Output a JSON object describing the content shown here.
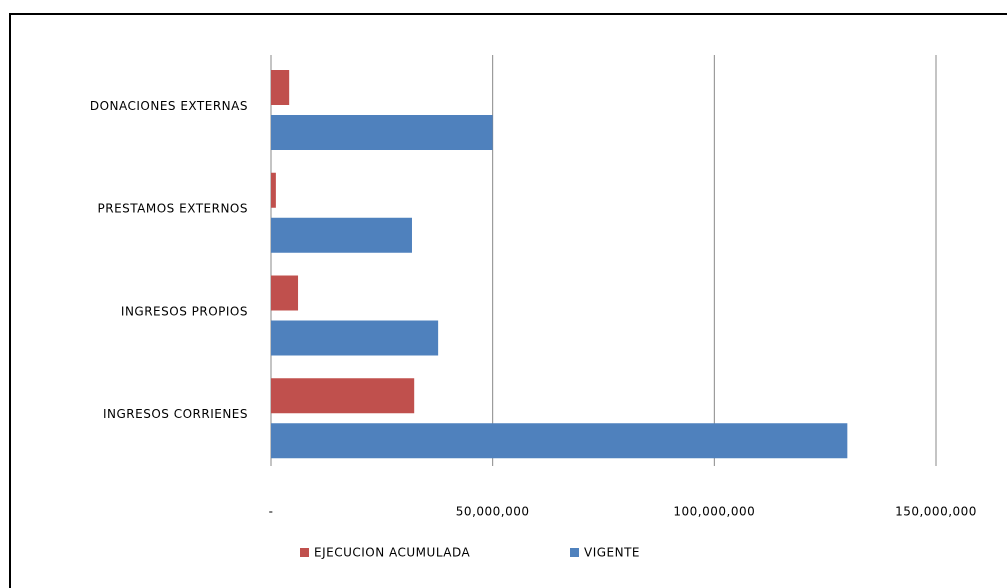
{
  "chart_data": {
    "type": "bar",
    "orientation": "horizontal",
    "categories": [
      "DONACIONES EXTERNAS",
      "PRESTAMOS EXTERNOS",
      "INGRESOS PROPIOS",
      "INGRESOS CORRIENES"
    ],
    "series": [
      {
        "name": "EJECUCION ACUMULADA",
        "color": "#c0504d",
        "values": [
          4100000,
          1100000,
          6100000,
          32300000
        ]
      },
      {
        "name": "VIGENTE",
        "color": "#4f81bd",
        "values": [
          50000000,
          31800000,
          37700000,
          130000000
        ]
      }
    ],
    "xlim": [
      0,
      150000000
    ],
    "xticks": [
      {
        "value": 0,
        "label": "-"
      },
      {
        "value": 50000000,
        "label": "50,000,000"
      },
      {
        "value": 100000000,
        "label": "100,000,000"
      },
      {
        "value": 150000000,
        "label": "150,000,000"
      }
    ],
    "grid": true,
    "legend": "bottom"
  }
}
